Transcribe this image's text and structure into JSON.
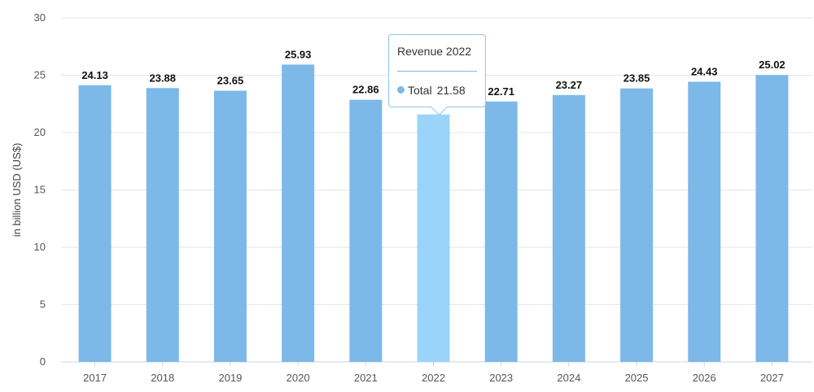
{
  "chart_data": {
    "type": "bar",
    "categories": [
      "2017",
      "2018",
      "2019",
      "2020",
      "2021",
      "2022",
      "2023",
      "2024",
      "2025",
      "2026",
      "2027"
    ],
    "values": [
      24.13,
      23.88,
      23.65,
      25.93,
      22.86,
      21.58,
      22.71,
      23.27,
      23.85,
      24.43,
      25.02
    ],
    "value_labels": [
      "24.13",
      "23.88",
      "23.65",
      "25.93",
      "22.86",
      "",
      "22.71",
      "23.27",
      "23.85",
      "24.43",
      "25.02"
    ],
    "ylabel": "in billion USD (US$)",
    "ylim": [
      0,
      30
    ],
    "yticks": [
      0,
      5,
      10,
      15,
      20,
      25,
      30
    ],
    "grid": true,
    "highlighted_category": "2022",
    "colors": {
      "bar": "#7cb9e8",
      "bar_highlight": "#9bd4fb",
      "grid": "#e6e6e6",
      "axis_text": "#555555",
      "label": "#111111"
    }
  },
  "tooltip": {
    "title": "Revenue 2022",
    "series_name": "Total",
    "value": "21.58",
    "dot_color": "#7cb9e8"
  }
}
